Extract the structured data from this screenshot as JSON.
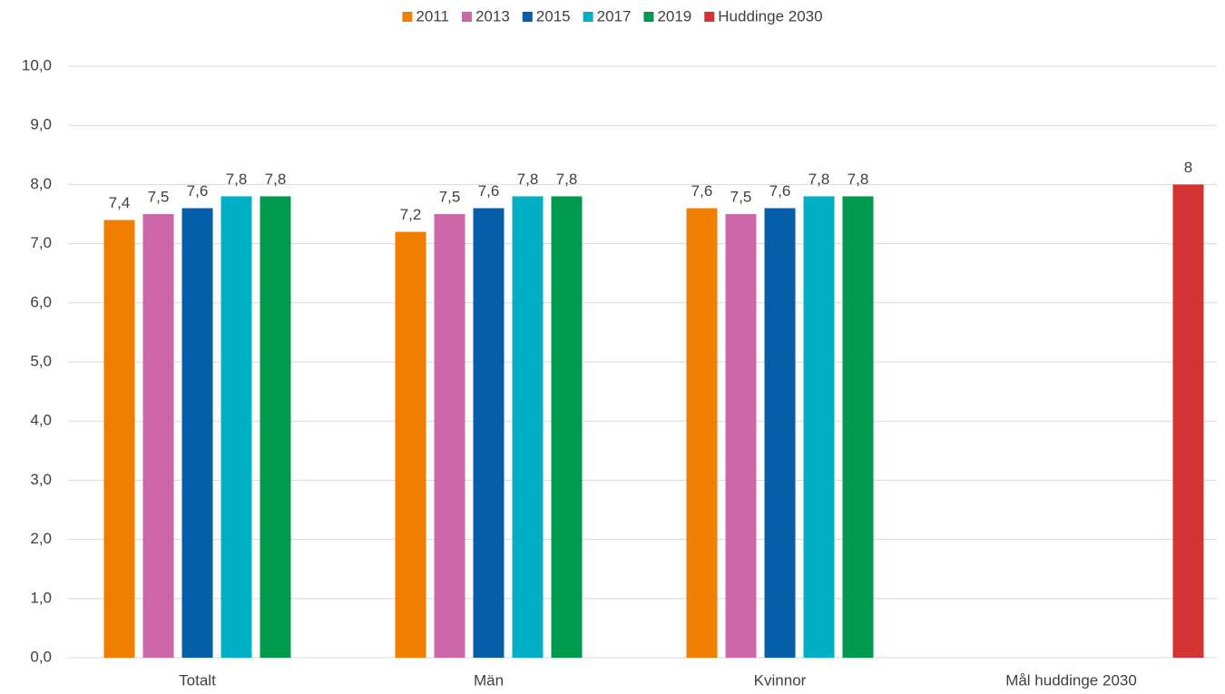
{
  "chart_data": {
    "type": "bar",
    "categories": [
      "Totalt",
      "Män",
      "Kvinnor",
      "Mål huddinge 2030"
    ],
    "series": [
      {
        "name": "2011",
        "color": "#f07f00",
        "values": [
          7.4,
          7.2,
          7.6,
          null
        ],
        "value_labels": [
          "7,4",
          "7,2",
          "7,6",
          null
        ]
      },
      {
        "name": "2013",
        "color": "#cc68a8",
        "values": [
          7.5,
          7.5,
          7.5,
          null
        ],
        "value_labels": [
          "7,5",
          "7,5",
          "7,5",
          null
        ]
      },
      {
        "name": "2015",
        "color": "#065da8",
        "values": [
          7.6,
          7.6,
          7.6,
          null
        ],
        "value_labels": [
          "7,6",
          "7,6",
          "7,6",
          null
        ]
      },
      {
        "name": "2017",
        "color": "#00afc3",
        "values": [
          7.8,
          7.8,
          7.8,
          null
        ],
        "value_labels": [
          "7,8",
          "7,8",
          "7,8",
          null
        ]
      },
      {
        "name": "2019",
        "color": "#009a4e",
        "values": [
          7.8,
          7.8,
          7.8,
          null
        ],
        "value_labels": [
          "7,8",
          "7,8",
          "7,8",
          null
        ]
      },
      {
        "name": "Huddinge 2030",
        "color": "#d43333",
        "values": [
          null,
          null,
          null,
          8
        ]
      }
    ],
    "ylim": [
      0,
      10
    ],
    "yticks": [
      {
        "value": 0,
        "label": "0,0"
      },
      {
        "value": 1,
        "label": "1,0"
      },
      {
        "value": 2,
        "label": "2,0"
      },
      {
        "value": 3,
        "label": "3,0"
      },
      {
        "value": 4,
        "label": "4,0"
      },
      {
        "value": 5,
        "label": "5,0"
      },
      {
        "value": 6,
        "label": "6,0"
      },
      {
        "value": 7,
        "label": "7,0"
      },
      {
        "value": 8,
        "label": "8,0"
      },
      {
        "value": 9,
        "label": "9,0"
      },
      {
        "value": 10,
        "label": "10,0"
      }
    ],
    "grid": true,
    "legend": "top"
  }
}
